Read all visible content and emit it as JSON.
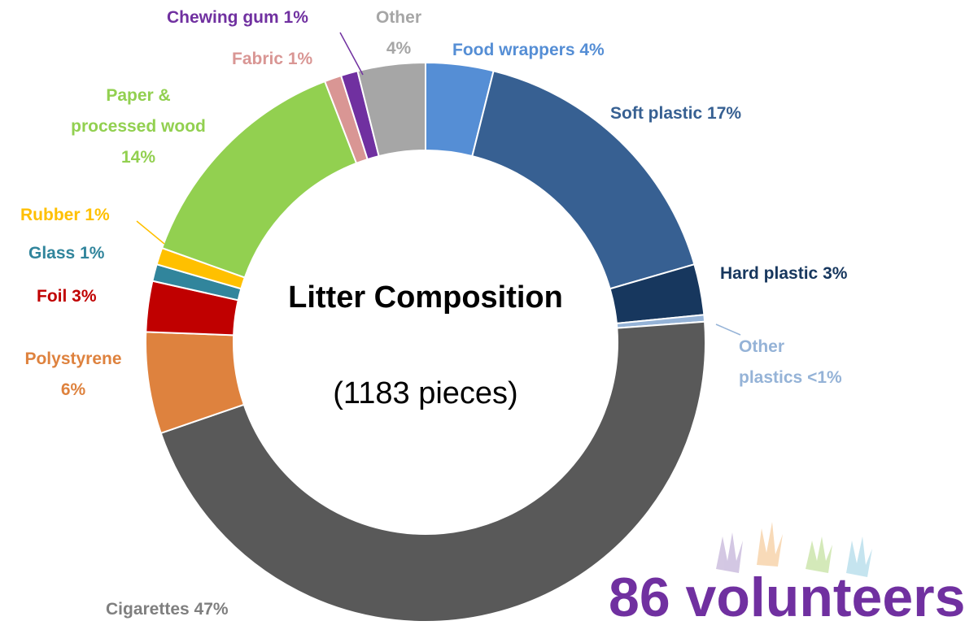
{
  "chart_data": {
    "type": "donut",
    "title": "Litter Composition",
    "subtitle": "(1183 pieces)",
    "annotation": "86 volunteers",
    "categories": [
      "Food wrappers",
      "Soft plastic",
      "Hard plastic",
      "Other plastics",
      "Cigarettes",
      "Polystyrene",
      "Foil",
      "Glass",
      "Rubber",
      "Paper & processed wood",
      "Fabric",
      "Chewing gum",
      "Other"
    ],
    "values": [
      4,
      17,
      3,
      0.4,
      47,
      6,
      3,
      1,
      1,
      14,
      1,
      1,
      4
    ],
    "value_labels": [
      "4%",
      "17%",
      "3%",
      "<1%",
      "47%",
      "6%",
      "3%",
      "1%",
      "1%",
      "14%",
      "1%",
      "1%",
      "4%"
    ],
    "colors": [
      "#558ED5",
      "#376092",
      "#17375E",
      "#95B3D7",
      "#595959",
      "#DE823E",
      "#C00000",
      "#31859C",
      "#FFC000",
      "#92D050",
      "#D99694",
      "#7030A0",
      "#A6A6A6"
    ]
  }
}
